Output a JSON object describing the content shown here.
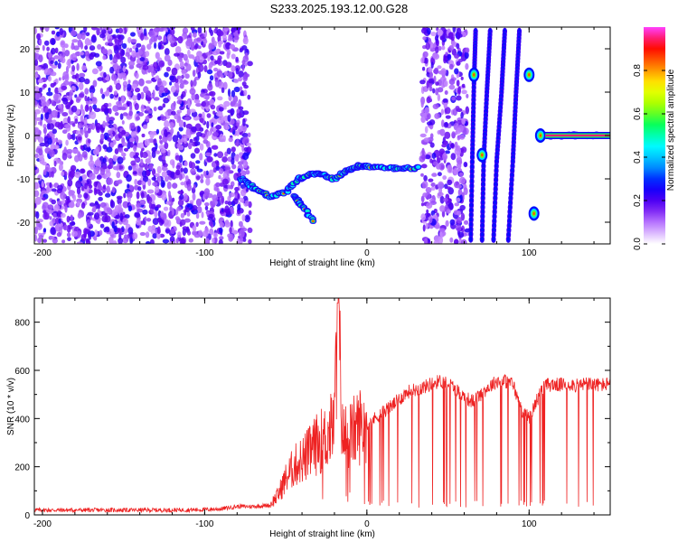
{
  "title": "S233.2025.193.12.00.G28",
  "colors": {
    "snr_line": "#ee2222",
    "frame": "#000000",
    "background": "#ffffff"
  },
  "chart_data": [
    {
      "type": "heatmap",
      "xlabel": "Height of straight line (km)",
      "ylabel": "Frequency (Hz)",
      "xlim": [
        -205,
        150
      ],
      "ylim": [
        -25,
        25
      ],
      "x_ticks": [
        -200,
        -100,
        0,
        100
      ],
      "y_ticks": [
        20,
        10,
        0,
        -10,
        -20
      ],
      "colorbar": {
        "label": "Normalized spectral amplitude",
        "range": [
          0,
          1
        ],
        "ticks": [
          "0.0",
          "0.2",
          "0.4",
          "0.6",
          "0.8"
        ],
        "colormap": [
          "#ffffff",
          "#c080ff",
          "#6000f0",
          "#0000ff",
          "#00a0ff",
          "#00ffff",
          "#00ff60",
          "#a0ff00",
          "#ffff00",
          "#ff8000",
          "#ff0000",
          "#ff40ff"
        ]
      },
      "features": [
        {
          "kind": "noise",
          "x_range": [
            -205,
            -72
          ],
          "y_range": [
            -25,
            25
          ]
        },
        {
          "kind": "noise",
          "x_range": [
            34,
            62
          ],
          "y_range": [
            -25,
            25
          ]
        },
        {
          "kind": "trace",
          "points": [
            [
              -78,
              -10
            ],
            [
              -70,
              -12
            ],
            [
              -60,
              -14
            ],
            [
              -50,
              -13
            ],
            [
              -42,
              -10
            ],
            [
              -35,
              -9
            ],
            [
              -28,
              -9
            ],
            [
              -20,
              -10
            ],
            [
              -12,
              -8
            ],
            [
              -5,
              -7
            ],
            [
              0,
              -7
            ],
            [
              10,
              -7.5
            ],
            [
              20,
              -7.5
            ],
            [
              33,
              -7.5
            ]
          ]
        },
        {
          "kind": "trace",
          "points": [
            [
              -45,
              -14
            ],
            [
              -40,
              -16
            ],
            [
              -33,
              -20
            ]
          ]
        },
        {
          "kind": "trace",
          "points": [
            [
              108,
              0
            ],
            [
              118,
              0
            ],
            [
              130,
              0
            ],
            [
              150,
              0
            ]
          ]
        },
        {
          "kind": "streak",
          "points": [
            [
              67,
              24
            ],
            [
              66,
              12
            ],
            [
              65,
              -5
            ],
            [
              64,
              -25
            ]
          ]
        },
        {
          "kind": "streak",
          "points": [
            [
              76,
              24
            ],
            [
              74,
              10
            ],
            [
              72,
              -6
            ],
            [
              71,
              -25
            ]
          ]
        },
        {
          "kind": "streak",
          "points": [
            [
              85,
              24
            ],
            [
              83,
              10
            ],
            [
              80,
              -6
            ],
            [
              78,
              -25
            ]
          ]
        },
        {
          "kind": "streak",
          "points": [
            [
              94,
              24
            ],
            [
              92,
              10
            ],
            [
              90,
              -6
            ],
            [
              87,
              -25
            ]
          ]
        },
        {
          "kind": "spot",
          "x": 66,
          "y": 14
        },
        {
          "kind": "spot",
          "x": 100,
          "y": 14
        },
        {
          "kind": "spot",
          "x": 71,
          "y": -4.5
        },
        {
          "kind": "spot",
          "x": 103,
          "y": -18
        },
        {
          "kind": "spot",
          "x": 107,
          "y": 0
        }
      ]
    },
    {
      "type": "line",
      "xlabel": "Height of straight line (km)",
      "ylabel": "SNR (10 * v/v)",
      "xlim": [
        -205,
        150
      ],
      "ylim": [
        0,
        900
      ],
      "x_ticks": [
        -200,
        -100,
        0,
        100
      ],
      "y_ticks": [
        0,
        200,
        400,
        600,
        800
      ],
      "series": [
        {
          "x": [
            -205,
            -180,
            -160,
            -140,
            -120,
            -100,
            -90,
            -80,
            -70,
            -60,
            -55,
            -50,
            -45,
            -40,
            -35,
            -30,
            -25,
            -20,
            -18,
            -15,
            -10,
            -5,
            0,
            5,
            10,
            15,
            20,
            25,
            30,
            35,
            40,
            45,
            50,
            55,
            60,
            65,
            70,
            75,
            80,
            85,
            90,
            95,
            100,
            105,
            110,
            115,
            120,
            125,
            130,
            135,
            140,
            145,
            150
          ],
          "values": [
            20,
            20,
            20,
            20,
            20,
            22,
            25,
            35,
            35,
            40,
            80,
            150,
            200,
            230,
            260,
            300,
            320,
            380,
            880,
            330,
            330,
            370,
            380,
            400,
            430,
            450,
            480,
            510,
            520,
            530,
            545,
            555,
            550,
            520,
            490,
            470,
            500,
            530,
            555,
            555,
            545,
            440,
            400,
            480,
            540,
            540,
            540,
            545,
            535,
            545,
            540,
            540,
            545
          ]
        }
      ],
      "dropouts": {
        "x_range": [
          0,
          148
        ],
        "min_value": 30
      }
    }
  ]
}
